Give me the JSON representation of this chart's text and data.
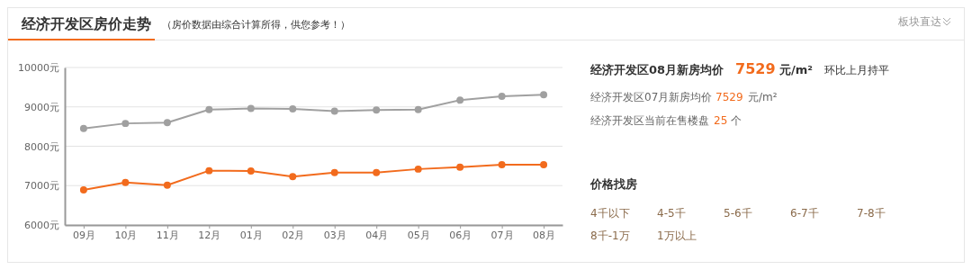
{
  "chart_data": {
    "type": "line",
    "title": "经济开发区房价走势",
    "subtitle": "（房价数据由综合计算所得，供您参考！）",
    "categories": [
      "09月",
      "10月",
      "11月",
      "12月",
      "01月",
      "02月",
      "03月",
      "04月",
      "05月",
      "06月",
      "07月",
      "08月"
    ],
    "series": [
      {
        "color": "#a0a0a0",
        "values": [
          8450,
          8580,
          8600,
          8930,
          8960,
          8950,
          8890,
          8920,
          8930,
          9170,
          9270,
          9310
        ]
      },
      {
        "color": "#f26b1d",
        "values": [
          6890,
          7080,
          7010,
          7380,
          7370,
          7230,
          7330,
          7330,
          7420,
          7470,
          7529,
          7529
        ]
      }
    ],
    "ylim": [
      6000,
      10000
    ],
    "yticks": [
      {
        "value": 6000,
        "label": "6000元"
      },
      {
        "value": 7000,
        "label": "7000元"
      },
      {
        "value": 8000,
        "label": "8000元"
      },
      {
        "value": 9000,
        "label": "9000元"
      },
      {
        "value": 10000,
        "label": "10000元"
      }
    ],
    "grid": "y",
    "marker": "circle",
    "line_style": "solid",
    "annotations": [
      "板块直达",
      "经济开发区08月新房均价",
      "7529",
      "元/m²",
      "环比上月持平",
      "经济开发区07月新房均价",
      "7529",
      "元/m²",
      "经济开发区当前在售楼盘",
      "25",
      "个",
      "价格找房",
      "4千以下",
      "4-5千",
      "5-6千",
      "6-7千",
      "7-8千",
      "8千-1万",
      "1万以上"
    ]
  }
}
